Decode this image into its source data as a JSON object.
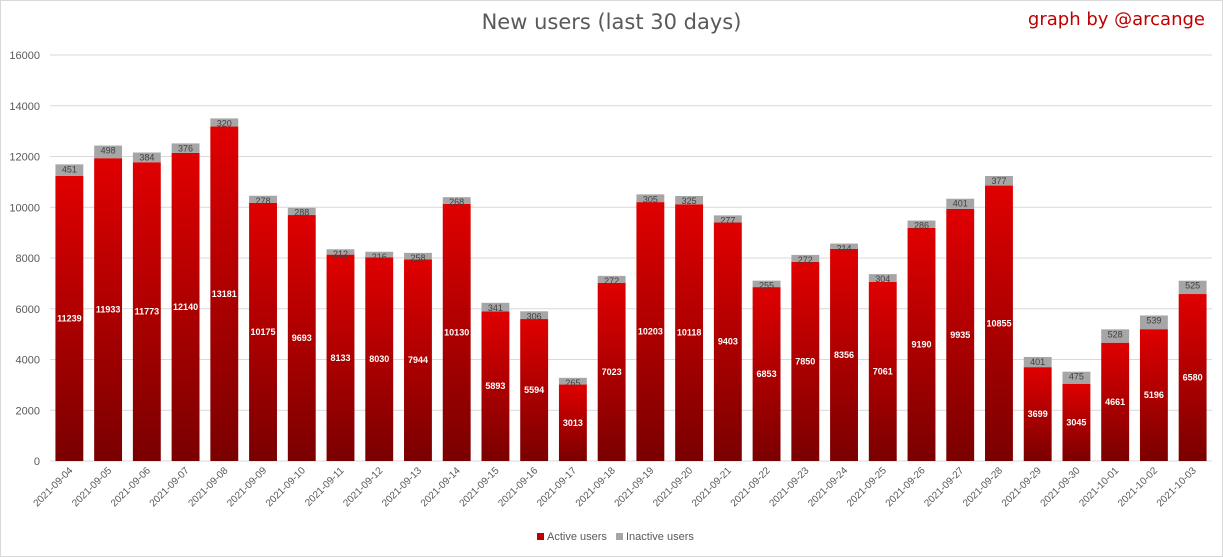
{
  "header": {
    "title": "New users (last 30 days)",
    "credit": "graph by @arcange"
  },
  "colors": {
    "active_top": "#e00000",
    "active_bottom": "#7a0000",
    "inactive": "#a6a6a6",
    "gridline": "#d9d9d9"
  },
  "chart_data": {
    "type": "bar",
    "stacked": true,
    "categories": [
      "2021-09-04",
      "2021-09-05",
      "2021-09-06",
      "2021-09-07",
      "2021-09-08",
      "2021-09-09",
      "2021-09-10",
      "2021-09-11",
      "2021-09-12",
      "2021-09-13",
      "2021-09-14",
      "2021-09-15",
      "2021-09-16",
      "2021-09-17",
      "2021-09-18",
      "2021-09-19",
      "2021-09-20",
      "2021-09-21",
      "2021-09-22",
      "2021-09-23",
      "2021-09-24",
      "2021-09-25",
      "2021-09-26",
      "2021-09-27",
      "2021-09-28",
      "2021-09-29",
      "2021-09-30",
      "2021-10-01",
      "2021-10-02",
      "2021-10-03"
    ],
    "series": [
      {
        "name": "Active users",
        "values": [
          11239,
          11933,
          11773,
          12140,
          13181,
          10175,
          9693,
          8133,
          8030,
          7944,
          10130,
          5893,
          5594,
          3013,
          7023,
          10203,
          10118,
          9403,
          6853,
          7850,
          8356,
          7061,
          9190,
          9935,
          10855,
          3699,
          3045,
          4661,
          5196,
          6580
        ]
      },
      {
        "name": "Inactive users",
        "values": [
          451,
          498,
          384,
          376,
          320,
          278,
          288,
          212,
          216,
          258,
          268,
          341,
          306,
          265,
          272,
          305,
          325,
          277,
          255,
          272,
          214,
          304,
          286,
          401,
          377,
          401,
          475,
          528,
          539,
          525
        ]
      }
    ],
    "ylim": [
      0,
      16000
    ],
    "yticks": [
      0,
      2000,
      4000,
      6000,
      8000,
      10000,
      12000,
      14000,
      16000
    ],
    "grid": true,
    "legend": "bottom"
  }
}
